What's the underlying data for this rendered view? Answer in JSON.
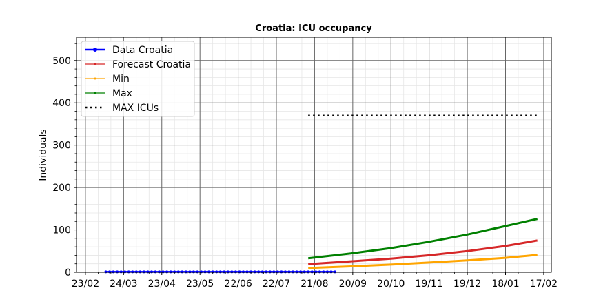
{
  "chart_data": {
    "type": "line",
    "title": "Croatia: ICU occupancy",
    "xlabel": "",
    "ylabel": "Individuals",
    "ylim": [
      0,
      555
    ],
    "yticks": [
      0,
      100,
      200,
      300,
      400,
      500
    ],
    "xlim": [
      "2020-02-16",
      "2021-02-23"
    ],
    "xticks": [
      {
        "date": "2020-02-23",
        "label": "23/02"
      },
      {
        "date": "2020-03-24",
        "label": "24/03"
      },
      {
        "date": "2020-04-23",
        "label": "23/04"
      },
      {
        "date": "2020-05-23",
        "label": "23/05"
      },
      {
        "date": "2020-06-22",
        "label": "22/06"
      },
      {
        "date": "2020-07-22",
        "label": "22/07"
      },
      {
        "date": "2020-08-21",
        "label": "21/08"
      },
      {
        "date": "2020-09-20",
        "label": "20/09"
      },
      {
        "date": "2020-10-20",
        "label": "20/10"
      },
      {
        "date": "2020-11-19",
        "label": "19/11"
      },
      {
        "date": "2020-12-19",
        "label": "19/12"
      },
      {
        "date": "2021-01-18",
        "label": "18/01"
      },
      {
        "date": "2021-02-17",
        "label": "17/02"
      }
    ],
    "grid": true,
    "legend_position": "top-left",
    "series": [
      {
        "name": "Data Croatia",
        "color": "#0000ff",
        "style": "line-dot-markers",
        "x": [
          "2020-03-10",
          "2020-09-06"
        ],
        "y": [
          1,
          1
        ]
      },
      {
        "name": "Forecast Croatia",
        "color": "#d62728",
        "style": "line",
        "x": [
          "2020-08-16",
          "2020-09-20",
          "2020-10-20",
          "2020-11-19",
          "2020-12-19",
          "2021-01-18",
          "2021-02-12"
        ],
        "y": [
          19,
          26,
          32,
          40,
          50,
          62,
          75
        ]
      },
      {
        "name": "Min",
        "color": "#ffa500",
        "style": "line",
        "x": [
          "2020-08-16",
          "2020-09-20",
          "2020-10-20",
          "2020-11-19",
          "2020-12-19",
          "2021-01-18",
          "2021-02-12"
        ],
        "y": [
          10,
          14,
          18,
          23,
          28,
          34,
          41
        ]
      },
      {
        "name": "Max",
        "color": "#008000",
        "style": "line",
        "x": [
          "2020-08-16",
          "2020-09-20",
          "2020-10-20",
          "2020-11-19",
          "2020-12-19",
          "2021-01-18",
          "2021-02-12"
        ],
        "y": [
          33,
          45,
          57,
          72,
          89,
          109,
          126
        ]
      },
      {
        "name": "MAX ICUs",
        "color": "#000000",
        "style": "dotted",
        "x": [
          "2020-08-16",
          "2021-02-12"
        ],
        "y": [
          370,
          370
        ]
      }
    ]
  }
}
